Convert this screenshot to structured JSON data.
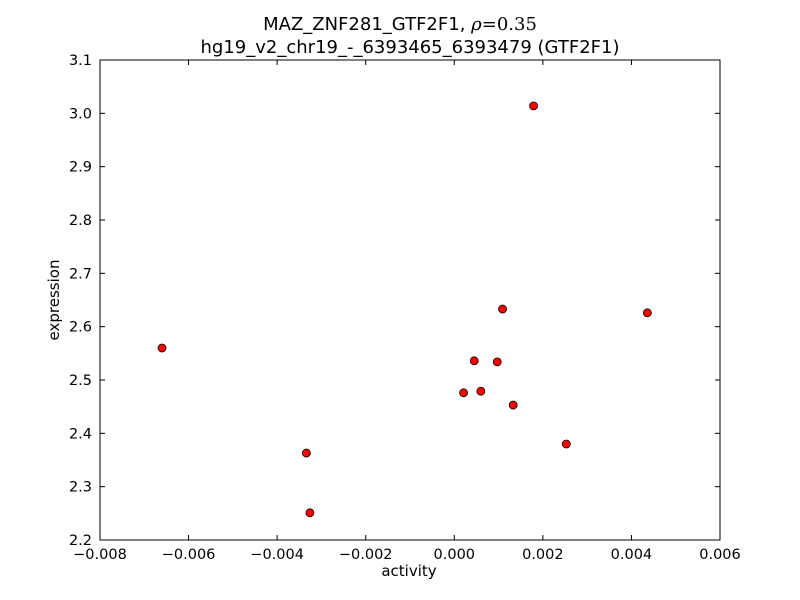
{
  "chart_data": {
    "type": "scatter",
    "title_line1": "MAZ_ZNF281_GTF2F1, ",
    "title_rho_symbol": "ρ",
    "title_rho_eq": "=0.35",
    "title_line2": "hg19_v2_chr19_-_6393465_6393479 (GTF2F1)",
    "xlabel": "activity",
    "ylabel": "expression",
    "xlim": [
      -0.008,
      0.006
    ],
    "ylim": [
      2.2,
      3.1
    ],
    "xticks": [
      -0.008,
      -0.006,
      -0.004,
      -0.002,
      0.0,
      0.002,
      0.004,
      0.006
    ],
    "xtick_labels": [
      "−0.008",
      "−0.006",
      "−0.004",
      "−0.002",
      "0.000",
      "0.002",
      "0.004",
      "0.006"
    ],
    "yticks": [
      2.2,
      2.3,
      2.4,
      2.5,
      2.6,
      2.7,
      2.8,
      2.9,
      3.0,
      3.1
    ],
    "ytick_labels": [
      "2.2",
      "2.3",
      "2.4",
      "2.5",
      "2.6",
      "2.7",
      "2.8",
      "2.9",
      "3.0",
      "3.1"
    ],
    "marker_color": "#ff0000",
    "marker_edge": "#000000",
    "points": [
      {
        "x": -0.0066,
        "y": 2.56
      },
      {
        "x": -0.00334,
        "y": 2.363
      },
      {
        "x": -0.00326,
        "y": 2.251
      },
      {
        "x": 0.00021,
        "y": 2.476
      },
      {
        "x": 0.00045,
        "y": 2.536
      },
      {
        "x": 0.0006,
        "y": 2.479
      },
      {
        "x": 0.00097,
        "y": 2.534
      },
      {
        "x": 0.00109,
        "y": 2.633
      },
      {
        "x": 0.00133,
        "y": 2.453
      },
      {
        "x": 0.00179,
        "y": 3.014
      },
      {
        "x": 0.00253,
        "y": 2.38
      },
      {
        "x": 0.00436,
        "y": 2.626
      }
    ],
    "grid": false
  }
}
